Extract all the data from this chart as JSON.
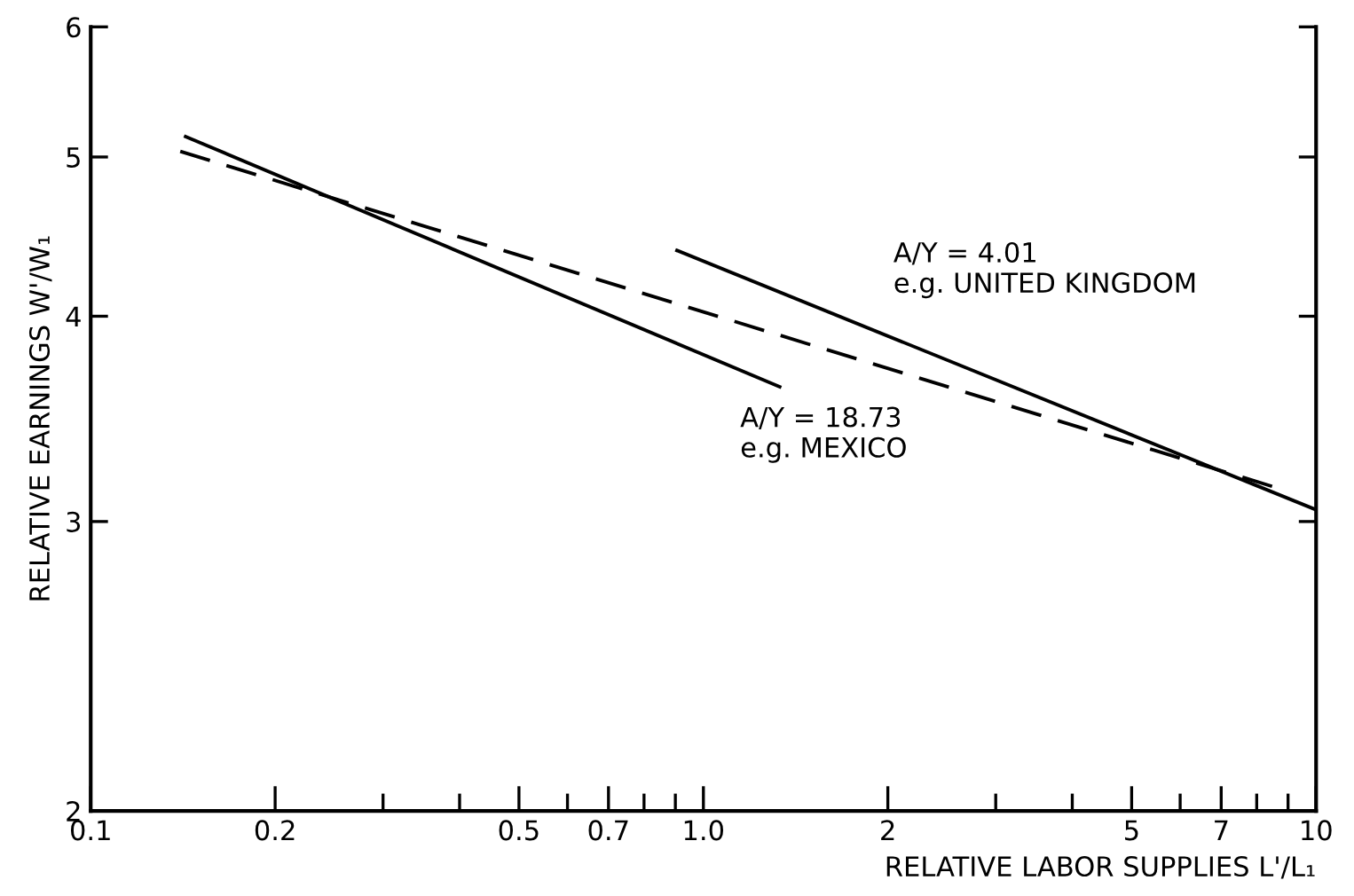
{
  "chart_data": {
    "type": "line",
    "xlabel": "RELATIVE LABOR SUPPLIES L'/L₁",
    "ylabel": "RELATIVE EARNINGS W'/W₁",
    "log": "xy",
    "xlim": [
      0.1,
      10
    ],
    "ylim": [
      2,
      6
    ],
    "xticks": [
      0.1,
      0.2,
      {
        "value": 0.3,
        "label": null
      },
      {
        "value": 0.4,
        "label": null
      },
      0.5,
      {
        "value": 0.6,
        "label": null
      },
      0.7,
      {
        "value": 0.8,
        "label": null
      },
      {
        "value": 0.9,
        "label": null
      },
      {
        "value": 1.0,
        "label": "1.0"
      },
      2,
      {
        "value": 3,
        "label": null
      },
      {
        "value": 4,
        "label": null
      },
      5,
      {
        "value": 6,
        "label": null
      },
      7,
      {
        "value": 8,
        "label": null
      },
      {
        "value": 9,
        "label": null
      },
      10
    ],
    "yticks": [
      2,
      3,
      4,
      5,
      6
    ],
    "grid": false,
    "legend": false,
    "series": [
      {
        "color": "#000000",
        "line_style": "solid",
        "x": [
          0.142,
          1.34
        ],
        "values": [
          5.15,
          3.62
        ]
      },
      {
        "color": "#000000",
        "line_style": "dashed",
        "x": [
          0.14,
          9.0
        ],
        "values": [
          5.04,
          3.13
        ]
      },
      {
        "color": "#000000",
        "line_style": "solid",
        "x": [
          0.9,
          10
        ],
        "values": [
          4.39,
          3.05
        ]
      }
    ],
    "annotations": [
      "A/Y = 4.01\ne.g. UNITED KINGDOM",
      "A/Y = 18.73\ne.g. MEXICO"
    ]
  }
}
